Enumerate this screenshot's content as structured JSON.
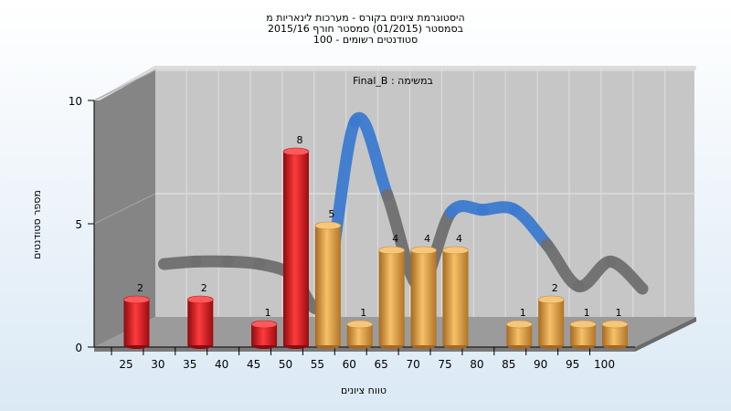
{
  "chart_data": {
    "type": "bar",
    "title": [
      "היסטוגרמת ציונים בקורס - מערכות לינאריות מ",
      "בסמסטר  (01/2015)  סמסטר חורף 2015/16",
      "100 - סטודנטים רשומים"
    ],
    "annotation": "Final_B : במשימה",
    "xlabel": "טווח ציונים",
    "ylabel": "מספר סטודנטים",
    "ylim": [
      0,
      10
    ],
    "yticks": [
      0,
      5,
      10
    ],
    "categories": [
      "25",
      "30",
      "35",
      "40",
      "45",
      "50",
      "55",
      "60",
      "65",
      "70",
      "75",
      "80",
      "85",
      "90",
      "95",
      "100"
    ],
    "values": [
      2,
      null,
      2,
      null,
      1,
      8,
      5,
      1,
      4,
      4,
      4,
      null,
      1,
      2,
      1,
      1
    ],
    "series": [
      {
        "values": [
          2,
          null,
          2,
          null,
          1,
          8,
          null,
          null,
          null,
          null,
          null,
          null,
          null,
          null,
          null,
          null
        ]
      },
      {
        "values": [
          null,
          null,
          null,
          null,
          null,
          null,
          5,
          1,
          4,
          4,
          4,
          null,
          1,
          2,
          1,
          1
        ]
      }
    ],
    "curve_y": [
      2.7,
      2.8,
      2.8,
      2.7,
      2.3,
      1.2,
      8.5,
      5.5,
      1.8,
      4.8,
      4.9,
      4.9,
      3.5,
      1.8,
      2.8,
      1.7
    ],
    "colors": {
      "bar_low": "#e0181e",
      "bar_high": "#eba441",
      "curve_high": "#3c7ad0",
      "curve_low": "#6f6f6f",
      "wall": "#c6c6c6",
      "side_wall": "#858585",
      "floor": "#9b9b9b"
    },
    "grid": true
  }
}
